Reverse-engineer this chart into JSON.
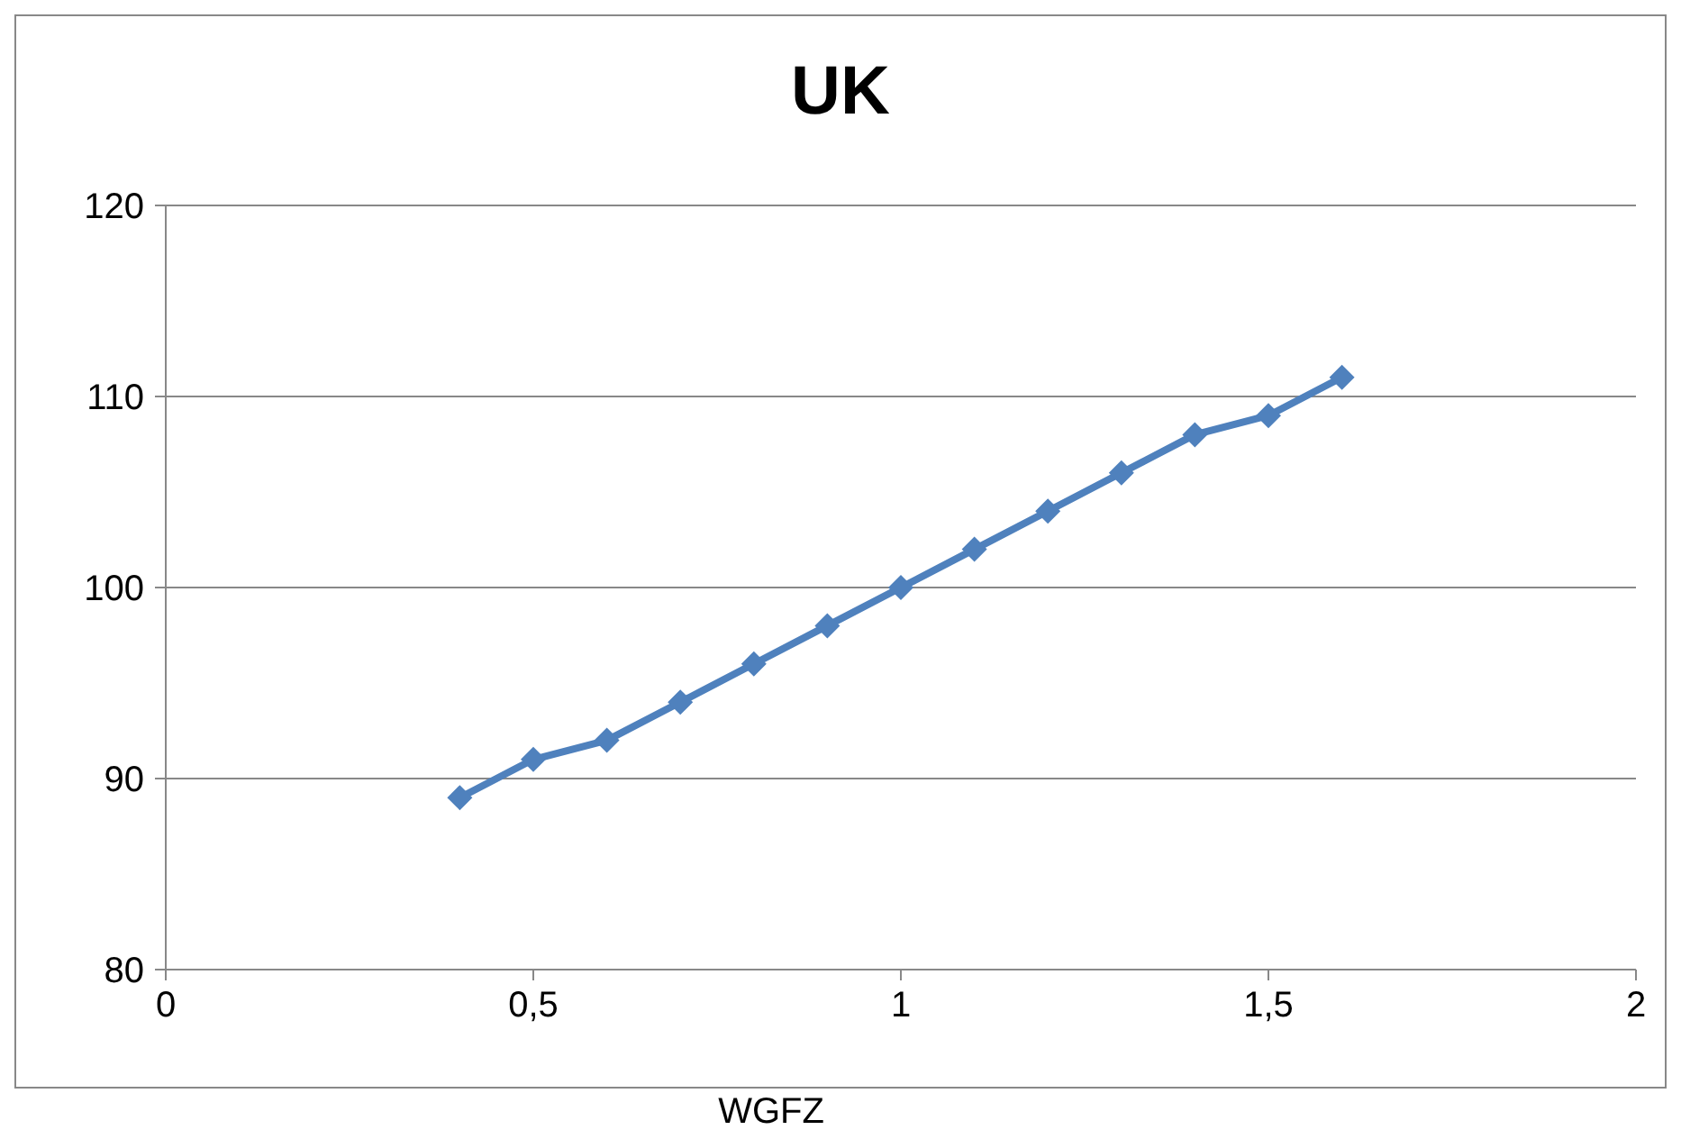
{
  "chart_data": {
    "type": "line",
    "title": "UK",
    "xlabel": "WGFZ",
    "x": [
      0.4,
      0.5,
      0.6,
      0.7,
      0.8,
      0.9,
      1.0,
      1.1,
      1.2,
      1.3,
      1.4,
      1.5,
      1.6
    ],
    "series": [
      {
        "color": "#4f81bd",
        "values": [
          89,
          91,
          92,
          94,
          96,
          98,
          100,
          102,
          104,
          106,
          108,
          109,
          111
        ]
      }
    ],
    "xlim": [
      0,
      2
    ],
    "xticks": [
      0,
      {
        "value": 0.5,
        "label": "0,5"
      },
      1,
      {
        "value": 1.5,
        "label": "1,5"
      },
      2
    ],
    "ylim": [
      80,
      120
    ],
    "yticks": [
      80,
      90,
      100,
      110,
      120
    ],
    "grid": "y",
    "marker": "diamond",
    "line_style": "solid"
  }
}
